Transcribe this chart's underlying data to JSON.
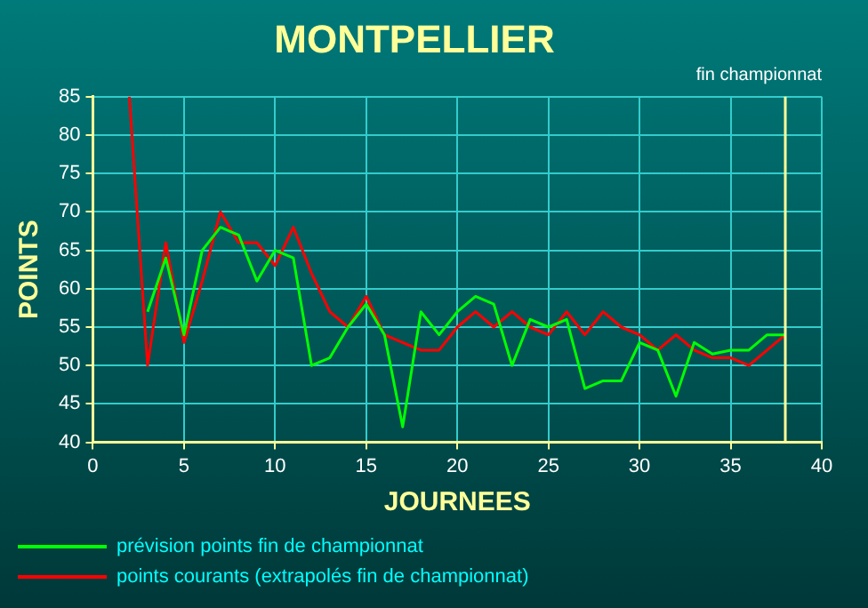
{
  "chart_data": {
    "type": "line",
    "title": "MONTPELLIER",
    "subtitle": "fin championnat",
    "xlabel": "JOURNEES",
    "ylabel": "POINTS",
    "xlim": [
      0,
      40
    ],
    "xticks": [
      0,
      5,
      10,
      15,
      20,
      25,
      30,
      35,
      40
    ],
    "ylim": [
      40,
      85
    ],
    "yticks": [
      40,
      45,
      50,
      55,
      60,
      65,
      70,
      75,
      80,
      85
    ],
    "grid": true,
    "legend": "bottom",
    "marker": "none",
    "line_style": "solid",
    "ref_lines": [
      {
        "axis": "x",
        "value": 38,
        "color": "#ffff99"
      }
    ],
    "series": [
      {
        "name": "prévision points fin de championnat",
        "color": "#00ff00",
        "x": [
          3,
          4,
          5,
          6,
          7,
          8,
          9,
          10,
          11,
          12,
          13,
          14,
          15,
          16,
          17,
          18,
          19,
          20,
          21,
          22,
          23,
          24,
          25,
          26,
          27,
          28,
          29,
          30,
          31,
          32,
          33,
          34,
          35,
          36,
          37,
          38
        ],
        "values": [
          57,
          64,
          54,
          65,
          68,
          67,
          61,
          65,
          64,
          50,
          51,
          55,
          58,
          54,
          42,
          57,
          54,
          57,
          59,
          58,
          50,
          56,
          55,
          56,
          47,
          48,
          48,
          53,
          52,
          46,
          53,
          51.5,
          52,
          52,
          54,
          54
        ]
      },
      {
        "name": "points courants (extrapolés fin de championnat)",
        "color": "#ff0000",
        "x": [
          2,
          3,
          4,
          5,
          6,
          7,
          8,
          9,
          10,
          11,
          12,
          13,
          14,
          15,
          16,
          17,
          18,
          19,
          20,
          21,
          22,
          23,
          24,
          25,
          26,
          27,
          28,
          29,
          30,
          31,
          32,
          33,
          34,
          35,
          36,
          37,
          38
        ],
        "values": [
          85,
          50,
          66,
          53,
          61,
          70,
          66,
          66,
          63,
          68,
          62,
          57,
          55,
          59,
          54,
          53,
          52,
          52,
          55,
          57,
          55,
          57,
          55,
          54,
          57,
          54,
          57,
          55,
          54,
          52,
          54,
          52,
          51,
          51,
          50,
          52,
          54
        ]
      }
    ]
  }
}
